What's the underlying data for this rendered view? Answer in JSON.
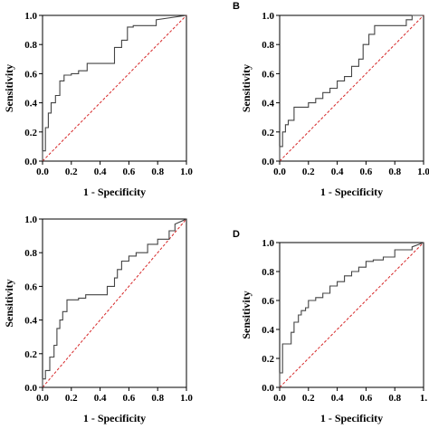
{
  "chart_data": [
    {
      "type": "line",
      "panel_label": "",
      "xlabel": "1 - Specificity",
      "ylabel": "Sensitivity",
      "xlim": [
        0,
        1.0
      ],
      "ylim": [
        0,
        1.0
      ],
      "x_ticks": [
        "0.0",
        "0.2",
        "0.4",
        "0.6",
        "0.8",
        "1.0"
      ],
      "y_ticks": [
        "0.0",
        "0.2",
        "0.4",
        "0.6",
        "0.8",
        "1.0"
      ],
      "grid": false,
      "reference_line": {
        "x": [
          0,
          1
        ],
        "y": [
          0,
          1
        ],
        "color": "#d62728",
        "style": "dashed"
      },
      "series": [
        {
          "color": "#444444",
          "x": [
            0,
            0,
            0.02,
            0.02,
            0.04,
            0.04,
            0.06,
            0.06,
            0.09,
            0.09,
            0.12,
            0.12,
            0.15,
            0.15,
            0.2,
            0.2,
            0.25,
            0.25,
            0.31,
            0.31,
            0.5,
            0.5,
            0.55,
            0.55,
            0.59,
            0.59,
            0.63,
            0.63,
            0.79,
            0.79,
            1.0
          ],
          "y": [
            0,
            0.07,
            0.07,
            0.23,
            0.23,
            0.33,
            0.33,
            0.4,
            0.4,
            0.45,
            0.45,
            0.55,
            0.55,
            0.59,
            0.59,
            0.6,
            0.6,
            0.62,
            0.62,
            0.67,
            0.67,
            0.78,
            0.78,
            0.83,
            0.83,
            0.92,
            0.92,
            0.93,
            0.93,
            0.97,
            1.0
          ]
        }
      ]
    },
    {
      "type": "line",
      "panel_label": "B",
      "xlabel": "1 - Specificity",
      "ylabel": "Sensitivity",
      "xlim": [
        0,
        1.0
      ],
      "ylim": [
        0,
        1.0
      ],
      "x_ticks": [
        "0.0",
        "0.2",
        "0.4",
        "0.6",
        "0.8",
        "1.0"
      ],
      "y_ticks": [
        "0.0",
        "0.2",
        "0.4",
        "0.6",
        "0.8",
        "1.0"
      ],
      "grid": false,
      "reference_line": {
        "x": [
          0,
          1
        ],
        "y": [
          0,
          1
        ],
        "color": "#d62728",
        "style": "dashed"
      },
      "series": [
        {
          "color": "#444444",
          "x": [
            0,
            0,
            0.02,
            0.02,
            0.04,
            0.04,
            0.06,
            0.06,
            0.1,
            0.1,
            0.2,
            0.2,
            0.25,
            0.25,
            0.3,
            0.3,
            0.35,
            0.35,
            0.4,
            0.4,
            0.45,
            0.45,
            0.5,
            0.5,
            0.55,
            0.55,
            0.58,
            0.58,
            0.62,
            0.62,
            0.66,
            0.66,
            0.88,
            0.88,
            0.92,
            0.92,
            1.0
          ],
          "y": [
            0,
            0.1,
            0.1,
            0.2,
            0.2,
            0.25,
            0.25,
            0.28,
            0.28,
            0.37,
            0.37,
            0.4,
            0.4,
            0.43,
            0.43,
            0.47,
            0.47,
            0.5,
            0.5,
            0.55,
            0.55,
            0.58,
            0.58,
            0.65,
            0.65,
            0.7,
            0.7,
            0.8,
            0.8,
            0.87,
            0.87,
            0.93,
            0.93,
            0.97,
            0.97,
            1.0,
            1.0
          ]
        }
      ]
    },
    {
      "type": "line",
      "panel_label": "",
      "xlabel": "1 - Specificity",
      "ylabel": "Sensitivity",
      "xlim": [
        0,
        1.0
      ],
      "ylim": [
        0,
        1.0
      ],
      "x_ticks": [
        "0.0",
        "0.2",
        "0.4",
        "0.6",
        "0.8",
        "1.0"
      ],
      "y_ticks": [
        "0.0",
        "0.2",
        "0.4",
        "0.6",
        "0.8",
        "1.0"
      ],
      "grid": false,
      "reference_line": {
        "x": [
          0,
          1
        ],
        "y": [
          0,
          1
        ],
        "color": "#d62728",
        "style": "dashed"
      },
      "series": [
        {
          "color": "#444444",
          "x": [
            0,
            0,
            0.02,
            0.02,
            0.05,
            0.05,
            0.08,
            0.08,
            0.1,
            0.1,
            0.12,
            0.12,
            0.14,
            0.14,
            0.17,
            0.17,
            0.25,
            0.25,
            0.3,
            0.3,
            0.45,
            0.45,
            0.5,
            0.5,
            0.52,
            0.52,
            0.55,
            0.55,
            0.6,
            0.6,
            0.65,
            0.65,
            0.73,
            0.73,
            0.8,
            0.8,
            0.88,
            0.88,
            0.92,
            0.92,
            1.0
          ],
          "y": [
            0,
            0.05,
            0.05,
            0.1,
            0.1,
            0.18,
            0.18,
            0.25,
            0.25,
            0.35,
            0.35,
            0.4,
            0.4,
            0.45,
            0.45,
            0.52,
            0.52,
            0.53,
            0.53,
            0.55,
            0.55,
            0.6,
            0.6,
            0.65,
            0.65,
            0.7,
            0.7,
            0.75,
            0.75,
            0.78,
            0.78,
            0.8,
            0.8,
            0.85,
            0.85,
            0.88,
            0.88,
            0.93,
            0.93,
            0.97,
            1.0
          ]
        }
      ]
    },
    {
      "type": "line",
      "panel_label": "D",
      "xlabel": "1 - Specificity",
      "ylabel": "Sensitivity",
      "xlim": [
        0,
        1.0
      ],
      "ylim": [
        0,
        1.0
      ],
      "x_ticks": [
        "0.0",
        "0.2",
        "0.4",
        "0.6",
        "0.8",
        "1."
      ],
      "y_ticks": [
        "0.0",
        "0.2",
        "0.4",
        "0.6",
        "0.8",
        "1.0"
      ],
      "grid": false,
      "reference_line": {
        "x": [
          0,
          1
        ],
        "y": [
          0,
          1
        ],
        "color": "#d62728",
        "style": "dashed"
      },
      "series": [
        {
          "color": "#444444",
          "x": [
            0,
            0,
            0.02,
            0.02,
            0.08,
            0.08,
            0.1,
            0.1,
            0.13,
            0.13,
            0.15,
            0.15,
            0.18,
            0.18,
            0.2,
            0.2,
            0.25,
            0.25,
            0.3,
            0.3,
            0.35,
            0.35,
            0.4,
            0.4,
            0.45,
            0.45,
            0.5,
            0.5,
            0.55,
            0.55,
            0.6,
            0.6,
            0.65,
            0.65,
            0.72,
            0.72,
            0.8,
            0.8,
            0.92,
            0.92,
            1.0
          ],
          "y": [
            0,
            0.1,
            0.1,
            0.3,
            0.3,
            0.38,
            0.38,
            0.45,
            0.45,
            0.5,
            0.5,
            0.53,
            0.53,
            0.55,
            0.55,
            0.6,
            0.6,
            0.62,
            0.62,
            0.65,
            0.65,
            0.7,
            0.7,
            0.73,
            0.73,
            0.77,
            0.77,
            0.8,
            0.8,
            0.83,
            0.83,
            0.87,
            0.87,
            0.88,
            0.88,
            0.9,
            0.9,
            0.95,
            0.95,
            0.97,
            1.0
          ]
        }
      ]
    }
  ]
}
